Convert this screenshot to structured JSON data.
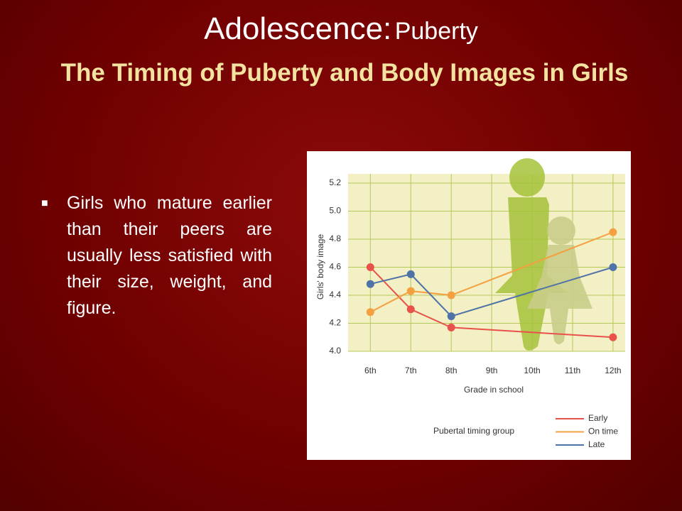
{
  "slide": {
    "title_main": "Adolescence:",
    "title_sub": "Puberty",
    "subtitle": "The Timing of Puberty and Body Images in Girls",
    "bullets": [
      "Girls who mature earlier than their peers are usually less satisfied with their size, weight, and figure."
    ]
  },
  "chart_data": {
    "type": "line",
    "x": [
      6,
      7,
      8,
      12
    ],
    "xlim": [
      5.45,
      12.3
    ],
    "xticks": [
      {
        "value": 6,
        "label": "6th"
      },
      {
        "value": 7,
        "label": "7th"
      },
      {
        "value": 8,
        "label": "8th"
      },
      {
        "value": 9,
        "label": "9th"
      },
      {
        "value": 10,
        "label": "10th"
      },
      {
        "value": 11,
        "label": "11th"
      },
      {
        "value": 12,
        "label": "12th"
      }
    ],
    "ylim": [
      4.0,
      5.2
    ],
    "yticks": [
      {
        "value": 4.0,
        "label": "4.0"
      },
      4.2,
      4.4,
      4.6,
      4.8,
      {
        "value": 5.0,
        "label": "5.0"
      },
      5.2
    ],
    "y_label": "Girls' body image",
    "x_label": "Grade in school",
    "legend_title": "Pubertal timing group",
    "grid": true,
    "series": [
      {
        "name": "Early",
        "color": "#e8524a",
        "values": [
          4.6,
          4.3,
          4.17,
          4.1
        ]
      },
      {
        "name": "On time",
        "color": "#f5a040",
        "values": [
          4.28,
          4.43,
          4.4,
          4.85
        ]
      },
      {
        "name": "Late",
        "color": "#4f72a8",
        "values": [
          4.48,
          4.55,
          4.25,
          4.6
        ]
      }
    ]
  }
}
